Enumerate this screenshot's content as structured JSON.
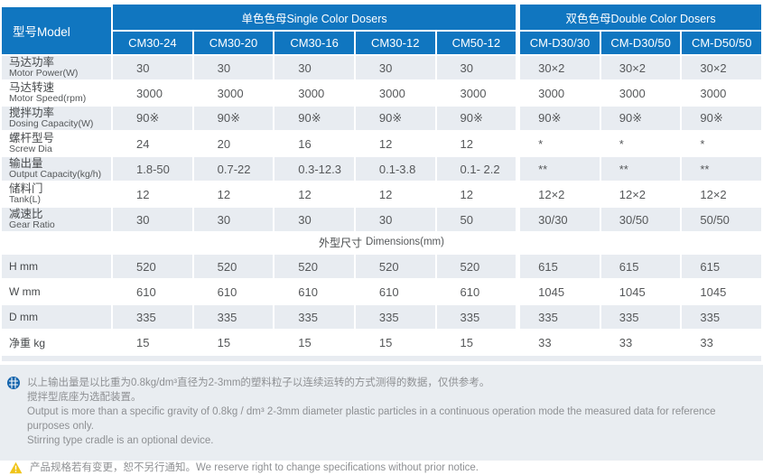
{
  "colors": {
    "header_blue": "#1076c0",
    "row_stripe": "#e8ecf1",
    "footer_bg": "#e9edf1",
    "note_icon_blue": "#1565ad",
    "warning_yellow": "#f0c419"
  },
  "table": {
    "model_header": "型号Model",
    "groups": {
      "single": "单色色母Single Color Dosers",
      "double": "双色色母Double Color Dosers"
    },
    "models": [
      "CM30-24",
      "CM30-20",
      "CM30-16",
      "CM30-12",
      "CM50-12",
      "CM-D30/30",
      "CM-D30/50",
      "CM-D50/50"
    ],
    "spec_rows": [
      {
        "zh": "马达功率",
        "en": "Motor Power(W)",
        "values": [
          "30",
          "30",
          "30",
          "30",
          "30",
          "30×2",
          "30×2",
          "30×2"
        ]
      },
      {
        "zh": "马达转速",
        "en": "Motor Speed(rpm)",
        "values": [
          "3000",
          "3000",
          "3000",
          "3000",
          "3000",
          "3000",
          "3000",
          "3000"
        ]
      },
      {
        "zh": "搅拌功率",
        "en": "Dosing Capacity(W)",
        "values": [
          "90※",
          "90※",
          "90※",
          "90※",
          "90※",
          "90※",
          "90※",
          "90※"
        ]
      },
      {
        "zh": "螺杆型号",
        "en": "Screw Dia",
        "values": [
          "24",
          "20",
          "16",
          "12",
          "12",
          "*",
          "*",
          "*"
        ]
      },
      {
        "zh": "输出量",
        "en": "Output Capacity(kg/h)",
        "values": [
          "1.8-50",
          "0.7-22",
          "0.3-12.3",
          "0.1-3.8",
          "0.1- 2.2",
          "**",
          "**",
          "**"
        ]
      },
      {
        "zh": "储料门",
        "en": "Tank(L)",
        "values": [
          "12",
          "12",
          "12",
          "12",
          "12",
          "12×2",
          "12×2",
          "12×2"
        ]
      },
      {
        "zh": "减速比",
        "en": "Gear Ratio",
        "values": [
          "30",
          "30",
          "30",
          "30",
          "50",
          "30/30",
          "30/50",
          "50/50"
        ]
      }
    ],
    "dims_header_zh": "外型尺寸",
    "dims_header_en": "Dimensions(mm)",
    "dim_rows": [
      {
        "label": "H mm",
        "values": [
          "520",
          "520",
          "520",
          "520",
          "520",
          "615",
          "615",
          "615"
        ]
      },
      {
        "label": "W mm",
        "values": [
          "610",
          "610",
          "610",
          "610",
          "610",
          "1045",
          "1045",
          "1045"
        ]
      },
      {
        "label": "D mm",
        "values": [
          "335",
          "335",
          "335",
          "335",
          "335",
          "335",
          "335",
          "335"
        ]
      },
      {
        "label": "净重 kg",
        "values": [
          "15",
          "15",
          "15",
          "15",
          "15",
          "33",
          "33",
          "33"
        ]
      }
    ]
  },
  "footer": {
    "note_lines": [
      "以上输出量是以比重为0.8kg/dm³直径为2-3mm的塑料粒子以连续运转的方式测得的数据，仅供参考。",
      "搅拌型底座为选配装置。",
      "Output is more than a specific gravity of 0.8kg / dm³ 2-3mm diameter plastic particles in a continuous operation mode the measured data for reference purposes only.",
      "Stirring type cradle is an optional device."
    ],
    "warning_line": "产品规格若有变更，恕不另行通知。We reserve right to change specifications without prior notice."
  }
}
